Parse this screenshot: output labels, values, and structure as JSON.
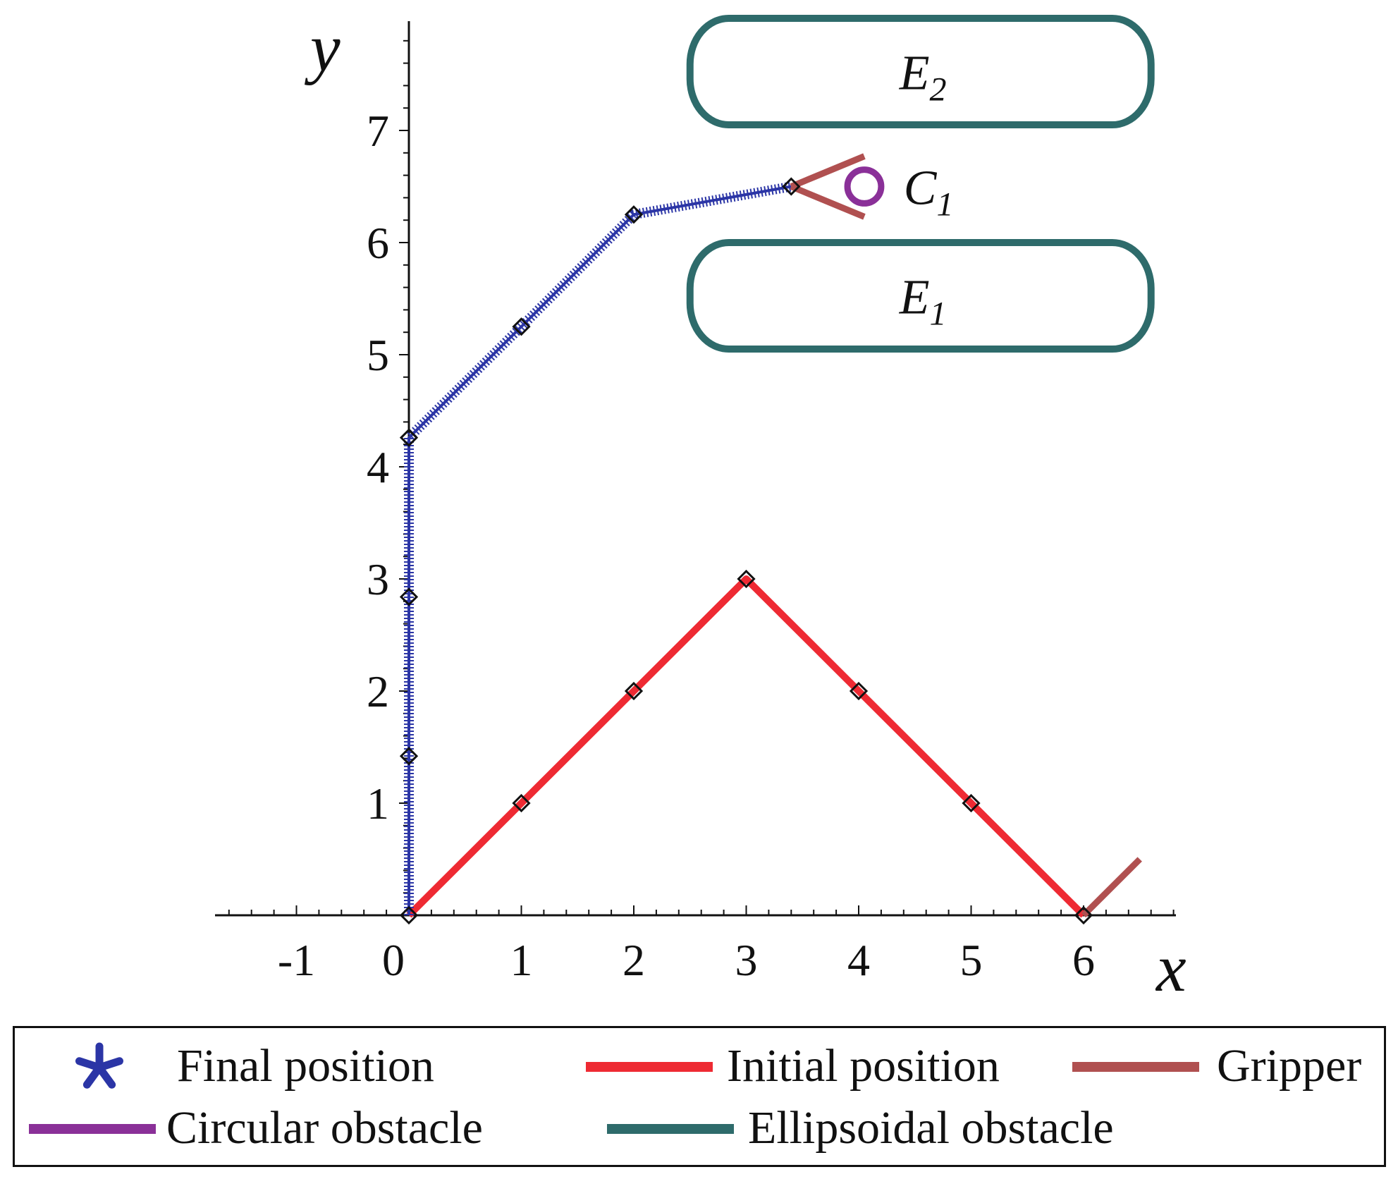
{
  "chart_data": {
    "type": "line",
    "title": "",
    "xlabel": "x",
    "ylabel": "y",
    "xlim": [
      -1.7,
      6.85
    ],
    "ylim": [
      0,
      8
    ],
    "x_ticks": [
      "-1",
      "0",
      "1",
      "2",
      "3",
      "4",
      "5",
      "6"
    ],
    "y_ticks": [
      "1",
      "2",
      "3",
      "4",
      "5",
      "6",
      "7"
    ],
    "grid": false,
    "legend_position": "bottom",
    "series": [
      {
        "name": "Final position",
        "color": "#2b35a6",
        "marker": "asterisk",
        "x": [
          0,
          0,
          0,
          0,
          1,
          2,
          3.4
        ],
        "y": [
          0,
          1.42,
          2.84,
          4.26,
          5.25,
          6.25,
          6.5
        ]
      },
      {
        "name": "Initial position",
        "color": "#ee2a33",
        "marker": "none",
        "x": [
          0,
          1,
          2,
          3,
          4,
          5,
          6
        ],
        "y": [
          0,
          1,
          2,
          3,
          2,
          1,
          0
        ]
      },
      {
        "name": "Gripper",
        "color": "#b05050",
        "segments": [
          {
            "x": [
              6,
              6.5
            ],
            "y": [
              0,
              0.5
            ]
          },
          {
            "x": [
              3.4,
              4.05
            ],
            "y": [
              6.5,
              6.77
            ]
          },
          {
            "x": [
              3.4,
              4.05
            ],
            "y": [
              6.5,
              6.23
            ]
          }
        ]
      },
      {
        "name": "Circular obstacle",
        "color": "#8a3098",
        "center": [
          4.05,
          6.5
        ],
        "radius": 0.15
      },
      {
        "name": "Ellipsoidal obstacle",
        "color": "#2e6b6b",
        "shapes": [
          {
            "label": "E",
            "subscript": "2",
            "x": [
              2.5,
              6.6
            ],
            "y": [
              7.05,
              8.0
            ]
          },
          {
            "label": "E",
            "subscript": "1",
            "x": [
              2.5,
              6.6
            ],
            "y": [
              5.05,
              6.0
            ]
          }
        ]
      }
    ],
    "joint_markers": {
      "color": "#111111",
      "x": [
        0,
        1,
        2,
        3,
        4,
        5,
        6,
        0,
        0,
        0,
        1,
        2,
        3.4
      ],
      "y": [
        0,
        1,
        2,
        3,
        2,
        1,
        0,
        1.42,
        2.84,
        4.26,
        5.25,
        6.25,
        6.5
      ]
    },
    "annotations": [
      {
        "label": "C",
        "subscript": "1",
        "x": 4.4,
        "y": 6.47
      }
    ]
  },
  "legend": {
    "items": [
      {
        "label": "Final position",
        "symbol": "asterisk",
        "color": "#2b35a6"
      },
      {
        "label": "Initial position",
        "symbol": "line",
        "color": "#ee2a33"
      },
      {
        "label": "Gripper",
        "symbol": "line",
        "color": "#b05050"
      },
      {
        "label": "Circular obstacle",
        "symbol": "line",
        "color": "#8a3098"
      },
      {
        "label": "Ellipsoidal obstacle",
        "symbol": "line",
        "color": "#2e6b6b"
      }
    ]
  }
}
